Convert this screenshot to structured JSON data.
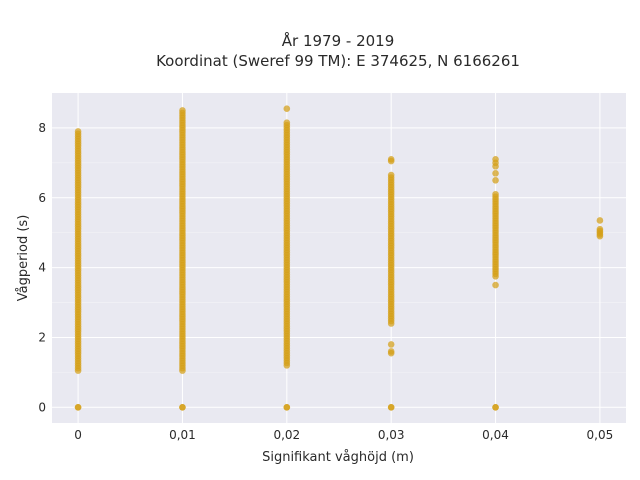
{
  "chart_data": {
    "type": "scatter",
    "title_lines": [
      "År 1979 - 2019",
      "Koordinat (Sweref 99 TM): E 374625, N 6166261"
    ],
    "xlabel": "Signifikant våghöjd (m)",
    "ylabel": "Vågperiod (s)",
    "xlim": [
      -0.0025,
      0.0525
    ],
    "ylim": [
      -0.45,
      9.0
    ],
    "x_ticks": [
      0,
      0.01,
      0.02,
      0.03,
      0.04,
      0.05
    ],
    "x_tick_labels": [
      "0",
      "0,01",
      "0,02",
      "0,03",
      "0,04",
      "0,05"
    ],
    "y_ticks": [
      0,
      2,
      4,
      6,
      8
    ],
    "y_tick_labels": [
      "0",
      "2",
      "4",
      "6",
      "8"
    ],
    "grid": true,
    "background_color": "#e9e9f1",
    "marker_color": "#d4a017",
    "columns": [
      {
        "x": 0.0,
        "y_min": 1.05,
        "y_max": 7.9,
        "zeros": true,
        "extra_y": []
      },
      {
        "x": 0.01,
        "y_min": 1.05,
        "y_max": 8.5,
        "zeros": true,
        "extra_y": []
      },
      {
        "x": 0.02,
        "y_min": 1.2,
        "y_max": 8.15,
        "zeros": true,
        "extra_y": [
          8.55
        ]
      },
      {
        "x": 0.03,
        "y_min": 2.4,
        "y_max": 6.65,
        "zeros": true,
        "extra_y": [
          1.55,
          1.6,
          1.8,
          7.05,
          7.1
        ]
      },
      {
        "x": 0.04,
        "y_min": 3.75,
        "y_max": 6.1,
        "zeros": true,
        "extra_y": [
          3.5,
          6.5,
          6.7,
          6.9,
          7.0,
          7.1
        ]
      },
      {
        "x": 0.05,
        "y_min": 4.9,
        "y_max": 5.1,
        "zeros": false,
        "extra_y": [
          5.35
        ]
      }
    ]
  }
}
